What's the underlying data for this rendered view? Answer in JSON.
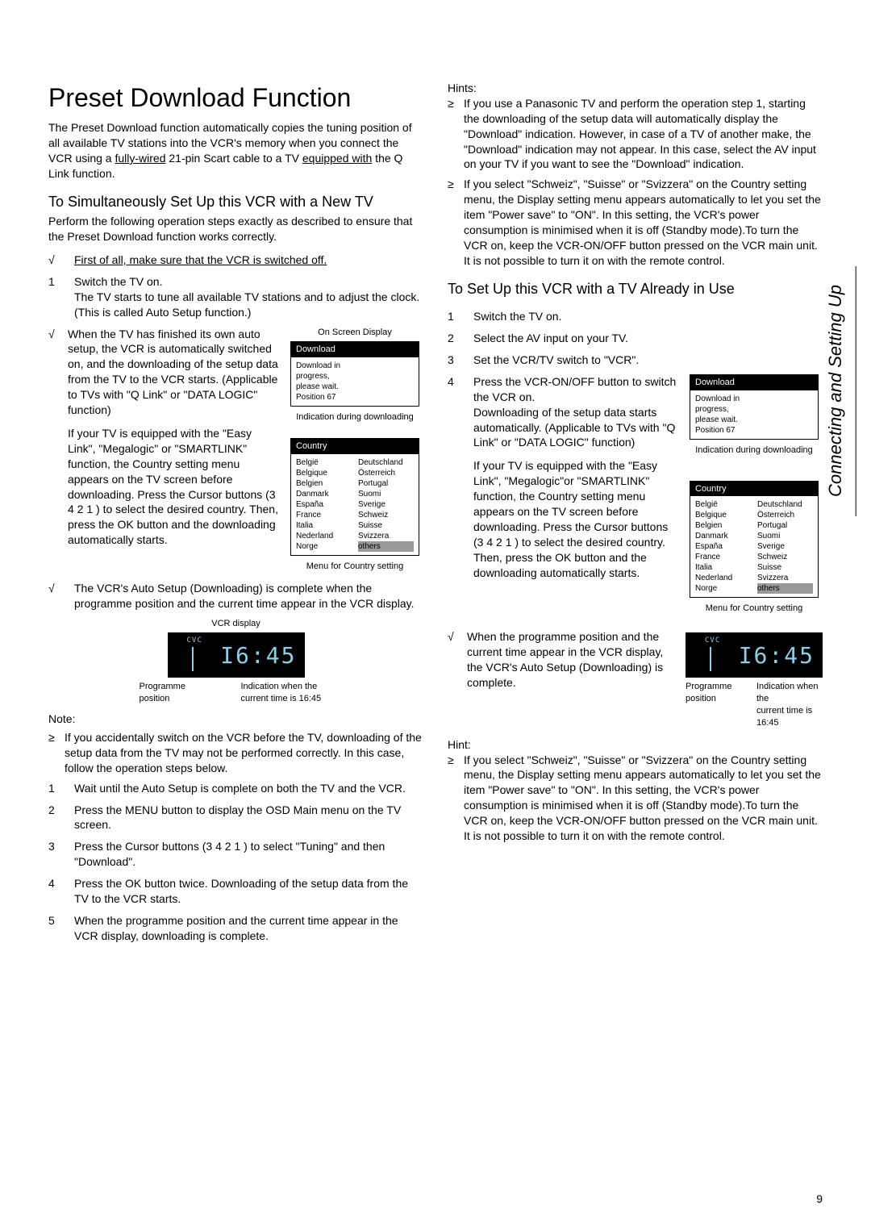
{
  "title": "Preset Download Function",
  "intro_p1": "The Preset Download function automatically copies the tuning position of all available TV stations into the VCR's memory when you connect the VCR using a ",
  "intro_u1": "fully-wired",
  "intro_p2": " 21-pin Scart cable to a TV ",
  "intro_u2": "equipped with",
  "intro_p3": " the Q Link function.",
  "sec1_title": "To Simultaneously Set Up this VCR with a New TV",
  "sec1_para": "Perform the following operation steps exactly as described to ensure that the Preset Download function works correctly.",
  "sec1_check1": "First of all, make sure that the VCR is switched off.",
  "sec1_step1_num": "1",
  "sec1_step1_a": "Switch the TV on.",
  "sec1_step1_b": "The TV starts to tune all available TV stations and to adjust the clock.",
  "sec1_step1_c": "(This is called Auto Setup function.)",
  "sec1_check2": "When the TV has finished its own auto setup, the VCR is automatically switched on, and the downloading of the setup data from the TV to the VCR starts. (Applicable to TVs with \"Q Link\" or \"DATA LOGIC\" function)",
  "sec1_check2b": "If your TV is equipped with the \"Easy Link\", \"Megalogic\" or \"SMARTLINK\" function, the Country setting menu appears on the TV screen before downloading. Press the Cursor buttons (3 4 2 1 )      to select the desired country. Then, press the OK button      and the downloading automatically starts.",
  "sec1_check3": "The VCR's Auto Setup (Downloading) is complete when the programme position and the current time appear in the VCR display.",
  "osd_caption_top": "On Screen Display",
  "osd_title": "Download",
  "osd_line1": "Download in",
  "osd_line2": "progress,",
  "osd_line3": "please wait.",
  "osd_line4": "Position    67",
  "osd_caption_bottom": "Indication during downloading",
  "country_title": "Country",
  "countries_left": [
    "België",
    "Belgique",
    "Belgien",
    "Danmark",
    "España",
    "France",
    "Italia",
    "Nederland",
    "Norge"
  ],
  "countries_right": [
    "Deutschland",
    "Österreich",
    "Portugal",
    "Suomi",
    "Sverige",
    "Schweiz",
    "Suisse",
    "Svizzera",
    "others"
  ],
  "country_caption": "Menu for Country setting",
  "vcr_caption": "VCR display",
  "vcr_cvc": "CVC",
  "vcr_time": "I6:45",
  "vcr_left_lbl_a": "Programme",
  "vcr_left_lbl_b": "position",
  "vcr_right_lbl_a": "Indication when the",
  "vcr_right_lbl_b": "current time is 16:45",
  "note_head": "Note:",
  "note_b1": "If you accidentally switch on the VCR before the TV, downloading of the setup data from the TV may not be performed correctly. In this case, follow the operation steps below.",
  "note_s1_num": "1",
  "note_s1": "Wait until the Auto Setup is complete on both the TV and the VCR.",
  "note_s2_num": "2",
  "note_s2": "Press the MENU button      to display the OSD Main menu on the TV screen.",
  "note_s3_num": "3",
  "note_s3": "Press the Cursor buttons (3 4 2 1 )      to select \"Tuning\" and then \"Download\".",
  "note_s4_num": "4",
  "note_s4": "Press the OK button      twice. Downloading of the setup data from the TV to the VCR starts.",
  "note_s5_num": "5",
  "note_s5": "When the programme position and the current time appear in the VCR display, downloading is complete.",
  "hints_head": "Hints:",
  "hint1": "If you use a Panasonic TV and perform the operation step 1, starting the downloading of the setup data will automatically display the \"Download\" indication. However, in case of a TV of another make, the \"Download\" indication may not appear. In this case, select the AV input on your TV if you want to see the \"Download\" indication.",
  "hint2": "If you select \"Schweiz\", \"Suisse\" or \"Svizzera\" on the Country setting menu, the Display setting menu appears automatically to let you set the item \"Power save\" to \"ON\". In this setting, the VCR's power consumption is minimised when it is off (Standby mode).To turn the VCR on, keep the VCR-ON/OFF button      pressed on the VCR main unit. It is not possible to turn it on with the remote control.",
  "sec2_title": "To Set Up this VCR with a TV Already in Use",
  "sec2_s1_num": "1",
  "sec2_s1": "Switch the TV on.",
  "sec2_s2_num": "2",
  "sec2_s2": "Select the AV input on your TV.",
  "sec2_s3_num": "3",
  "sec2_s3": "Set the VCR/TV switch      to \"VCR\".",
  "sec2_s4_num": "4",
  "sec2_s4a": "Press the VCR-ON/OFF button      to switch the VCR on.",
  "sec2_s4b": "Downloading of the setup data starts automatically. (Applicable to TVs with \"Q Link\" or \"DATA LOGIC\" function)",
  "sec2_s4c": "If your TV is equipped with the \"Easy Link\", \"Megalogic\"or \"SMARTLINK\" function, the Country setting menu appears on the TV screen before downloading. Press the Cursor buttons (3 4 2 1 )      to select the desired country. Then, press the OK button      and the downloading automatically starts.",
  "sec2_check": "When the programme position and the current time appear in the VCR display, the VCR's Auto Setup (Downloading) is complete.",
  "hint_head2": "Hint:",
  "hint3": "If you select \"Schweiz\", \"Suisse\" or \"Svizzera\" on the Country setting menu, the Display setting menu appears automatically to let you set the item \"Power save\" to \"ON\". In this setting, the VCR's power consumption is minimised when it is off (Standby mode).To turn the VCR on, keep the VCR-ON/OFF button      pressed on the VCR main unit. It is not possible to turn it on with the remote control.",
  "side_tab": "Connecting and Setting Up",
  "page_num": "9",
  "check_glyph": "√",
  "bullet_glyph": "≥"
}
